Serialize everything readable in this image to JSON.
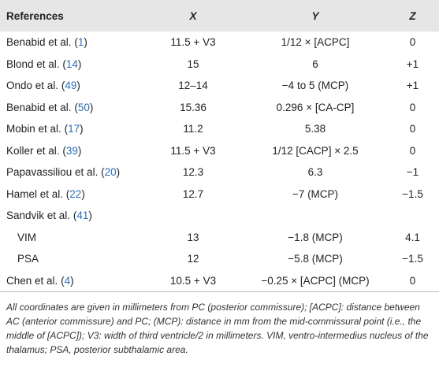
{
  "table": {
    "header": [
      "References",
      "X",
      "Y",
      "Z"
    ],
    "rows": [
      {
        "reference": "Benabid et al.",
        "citation": "(1)",
        "x": "11.5 + V3",
        "y": "1/12 × [ACPC]",
        "z": "0"
      },
      {
        "reference": "Blond et al.",
        "citation": "(14)",
        "x": "15",
        "y": "6",
        "z": "+1"
      },
      {
        "reference": "Ondo et al.",
        "citation": "(49)",
        "x": "12–14",
        "y": "−4 to 5 (MCP)",
        "z": "+1"
      },
      {
        "reference": "Benabid et al.",
        "citation": "(50)",
        "x": "15.36",
        "y": "0.296 × [CA-CP]",
        "z": "0"
      },
      {
        "reference": "Mobin et al.",
        "citation": "(17)",
        "x": "11.2",
        "y": "5.38",
        "z": "0"
      },
      {
        "reference": "Koller et al.",
        "citation": "(39)",
        "x": "11.5 + V3",
        "y": "1/12 [CACP] × 2.5",
        "z": "0"
      },
      {
        "reference": "Papavassiliou et al.",
        "citation": "(20)",
        "x": "12.3",
        "y": "6.3",
        "z": "−1"
      },
      {
        "reference": "Hamel et al.",
        "citation": "(22)",
        "x": "12.7",
        "y": "−7 (MCP)",
        "z": "−1.5"
      },
      {
        "reference": "Sandvik et al.",
        "citation": "(41)",
        "subrows": [
          {
            "reference": "VIM",
            "x": "13",
            "y": "−1.8 (MCP)",
            "z": "4.1"
          },
          {
            "reference": "PSA",
            "x": "12",
            "y": "−5.8 (MCP)",
            "z": "−1.5"
          }
        ]
      },
      {
        "reference": "Chen et al.",
        "citation": "(4)",
        "x": "10.5 + V3",
        "y": "−0.25 × [ACPC] (MCP)",
        "z": "0"
      }
    ],
    "footnote": "All coordinates are given in millimeters from PC (posterior commissure); [ACPC]: distance between AC (anterior commissure) and PC; (MCP): distance in mm from the mid-commissural point (i.e., the middle of [ACPC]); V3: width of third ventricle/2 in millimeters. VIM, ventro-intermedius nucleus of the thalamus; PSA, posterior subthalamic area."
  }
}
